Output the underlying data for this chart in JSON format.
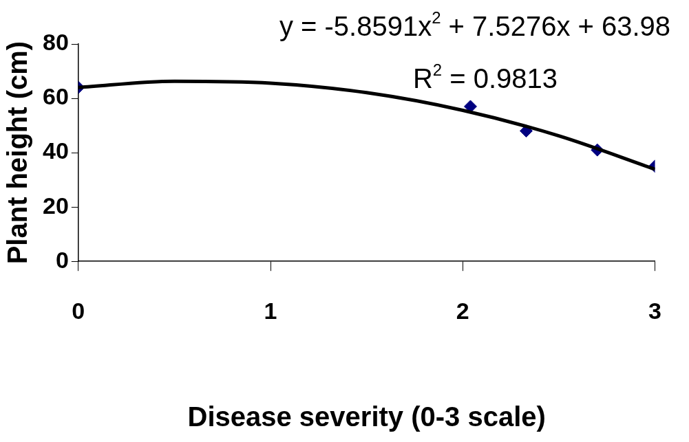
{
  "chart_data": {
    "type": "scatter",
    "xlabel": "Disease severity (0-3 scale)",
    "ylabel": "Plant height (cm)",
    "xlim": [
      0,
      3
    ],
    "xticks": [
      0,
      1,
      2,
      3
    ],
    "ylim": [
      0,
      80
    ],
    "yticks": [
      0,
      20,
      40,
      60,
      80
    ],
    "grid": false,
    "legend": false,
    "marker": "diamond",
    "series": [
      {
        "color": "#000080",
        "x": [
          0,
          2.04,
          2.33,
          2.7,
          3
        ],
        "values": [
          64,
          57,
          48,
          41,
          35
        ]
      },
      {
        "type": "line",
        "color": "#000000",
        "line_style": "solid",
        "marker": "none",
        "x": [
          0,
          0.5,
          1,
          1.5,
          2,
          2.5,
          3
        ],
        "values": [
          64,
          66.3,
          65.6,
          62.1,
          55.6,
          46.2,
          33.9
        ]
      }
    ],
    "annotations": [
      "y = -5.8591x$^{2}$ + 7.5276x + 63.98",
      "R$^{2}$ = 0.9813"
    ]
  }
}
